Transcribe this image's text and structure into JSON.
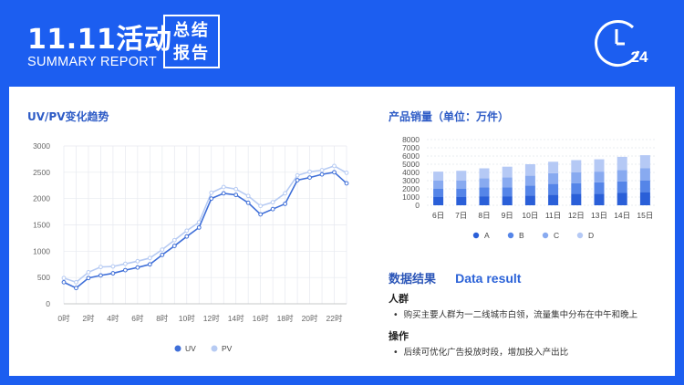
{
  "header": {
    "title": "11.11活动",
    "subtitle": "SUMMARY REPORT",
    "box_line1": "总结",
    "box_line2": "报告",
    "clock_number": "24"
  },
  "colors": {
    "background": "#1c5ef0",
    "uv": "#3f6fd8",
    "pv": "#b7cbf3",
    "bar_a": "#2a5fd8",
    "bar_b": "#5585e8",
    "bar_c": "#88aaf0",
    "bar_d": "#b5c9f5"
  },
  "left_chart_title": "UV/PV变化趋势",
  "right_chart_title": "产品销量（单位：万件）",
  "results": {
    "title": "数据结果",
    "title_en": "Data result",
    "items": [
      {
        "label": "人群",
        "text": "购买主要人群为一二线城市白领，流量集中分布在中午和晚上"
      },
      {
        "label": "操作",
        "text": "后续可优化广告投放时段，增加投入产出比"
      }
    ]
  },
  "chart_data": [
    {
      "type": "line",
      "title": "UV/PV变化趋势",
      "xlabel": "",
      "ylabel": "",
      "ylim": [
        0,
        3000
      ],
      "yticks": [
        0,
        500,
        1000,
        1500,
        2000,
        2500,
        3000
      ],
      "x": [
        0,
        1,
        2,
        3,
        4,
        5,
        6,
        7,
        8,
        9,
        10,
        11,
        12,
        13,
        14,
        15,
        16,
        17,
        18,
        19,
        20,
        21,
        22,
        23
      ],
      "xtick_labels": [
        "0时",
        "2时",
        "4时",
        "6时",
        "8时",
        "10时",
        "12时",
        "14时",
        "16时",
        "18时",
        "20时",
        "22时"
      ],
      "grid": true,
      "legend": "bottom",
      "series": [
        {
          "name": "UV",
          "values": [
            410,
            300,
            490,
            540,
            580,
            640,
            690,
            750,
            930,
            1100,
            1280,
            1450,
            2000,
            2100,
            2070,
            1920,
            1700,
            1800,
            1900,
            2350,
            2400,
            2460,
            2500,
            2290
          ]
        },
        {
          "name": "PV",
          "values": [
            490,
            410,
            600,
            700,
            710,
            760,
            810,
            870,
            1030,
            1210,
            1390,
            1550,
            2110,
            2220,
            2180,
            2050,
            1860,
            1930,
            2100,
            2440,
            2510,
            2540,
            2620,
            2490
          ]
        }
      ]
    },
    {
      "type": "bar",
      "stacked": true,
      "title": "产品销量（单位：万件）",
      "categories": [
        "6日",
        "7日",
        "8日",
        "9日",
        "10日",
        "11日",
        "12日",
        "13日",
        "14日",
        "15日"
      ],
      "ylim": [
        0,
        8000
      ],
      "yticks": [
        0,
        1000,
        2000,
        3000,
        4000,
        5000,
        6000,
        7000,
        8000
      ],
      "legend": "bottom",
      "series": [
        {
          "name": "A",
          "values": [
            1000,
            1000,
            1100,
            1100,
            1200,
            1300,
            1400,
            1400,
            1500,
            1600
          ]
        },
        {
          "name": "B",
          "values": [
            1000,
            1000,
            1100,
            1100,
            1200,
            1300,
            1300,
            1400,
            1400,
            1400
          ]
        },
        {
          "name": "C",
          "values": [
            1000,
            1000,
            1100,
            1200,
            1200,
            1300,
            1300,
            1300,
            1400,
            1500
          ]
        },
        {
          "name": "D",
          "values": [
            1100,
            1200,
            1200,
            1300,
            1400,
            1400,
            1500,
            1500,
            1600,
            1600
          ]
        }
      ]
    }
  ]
}
